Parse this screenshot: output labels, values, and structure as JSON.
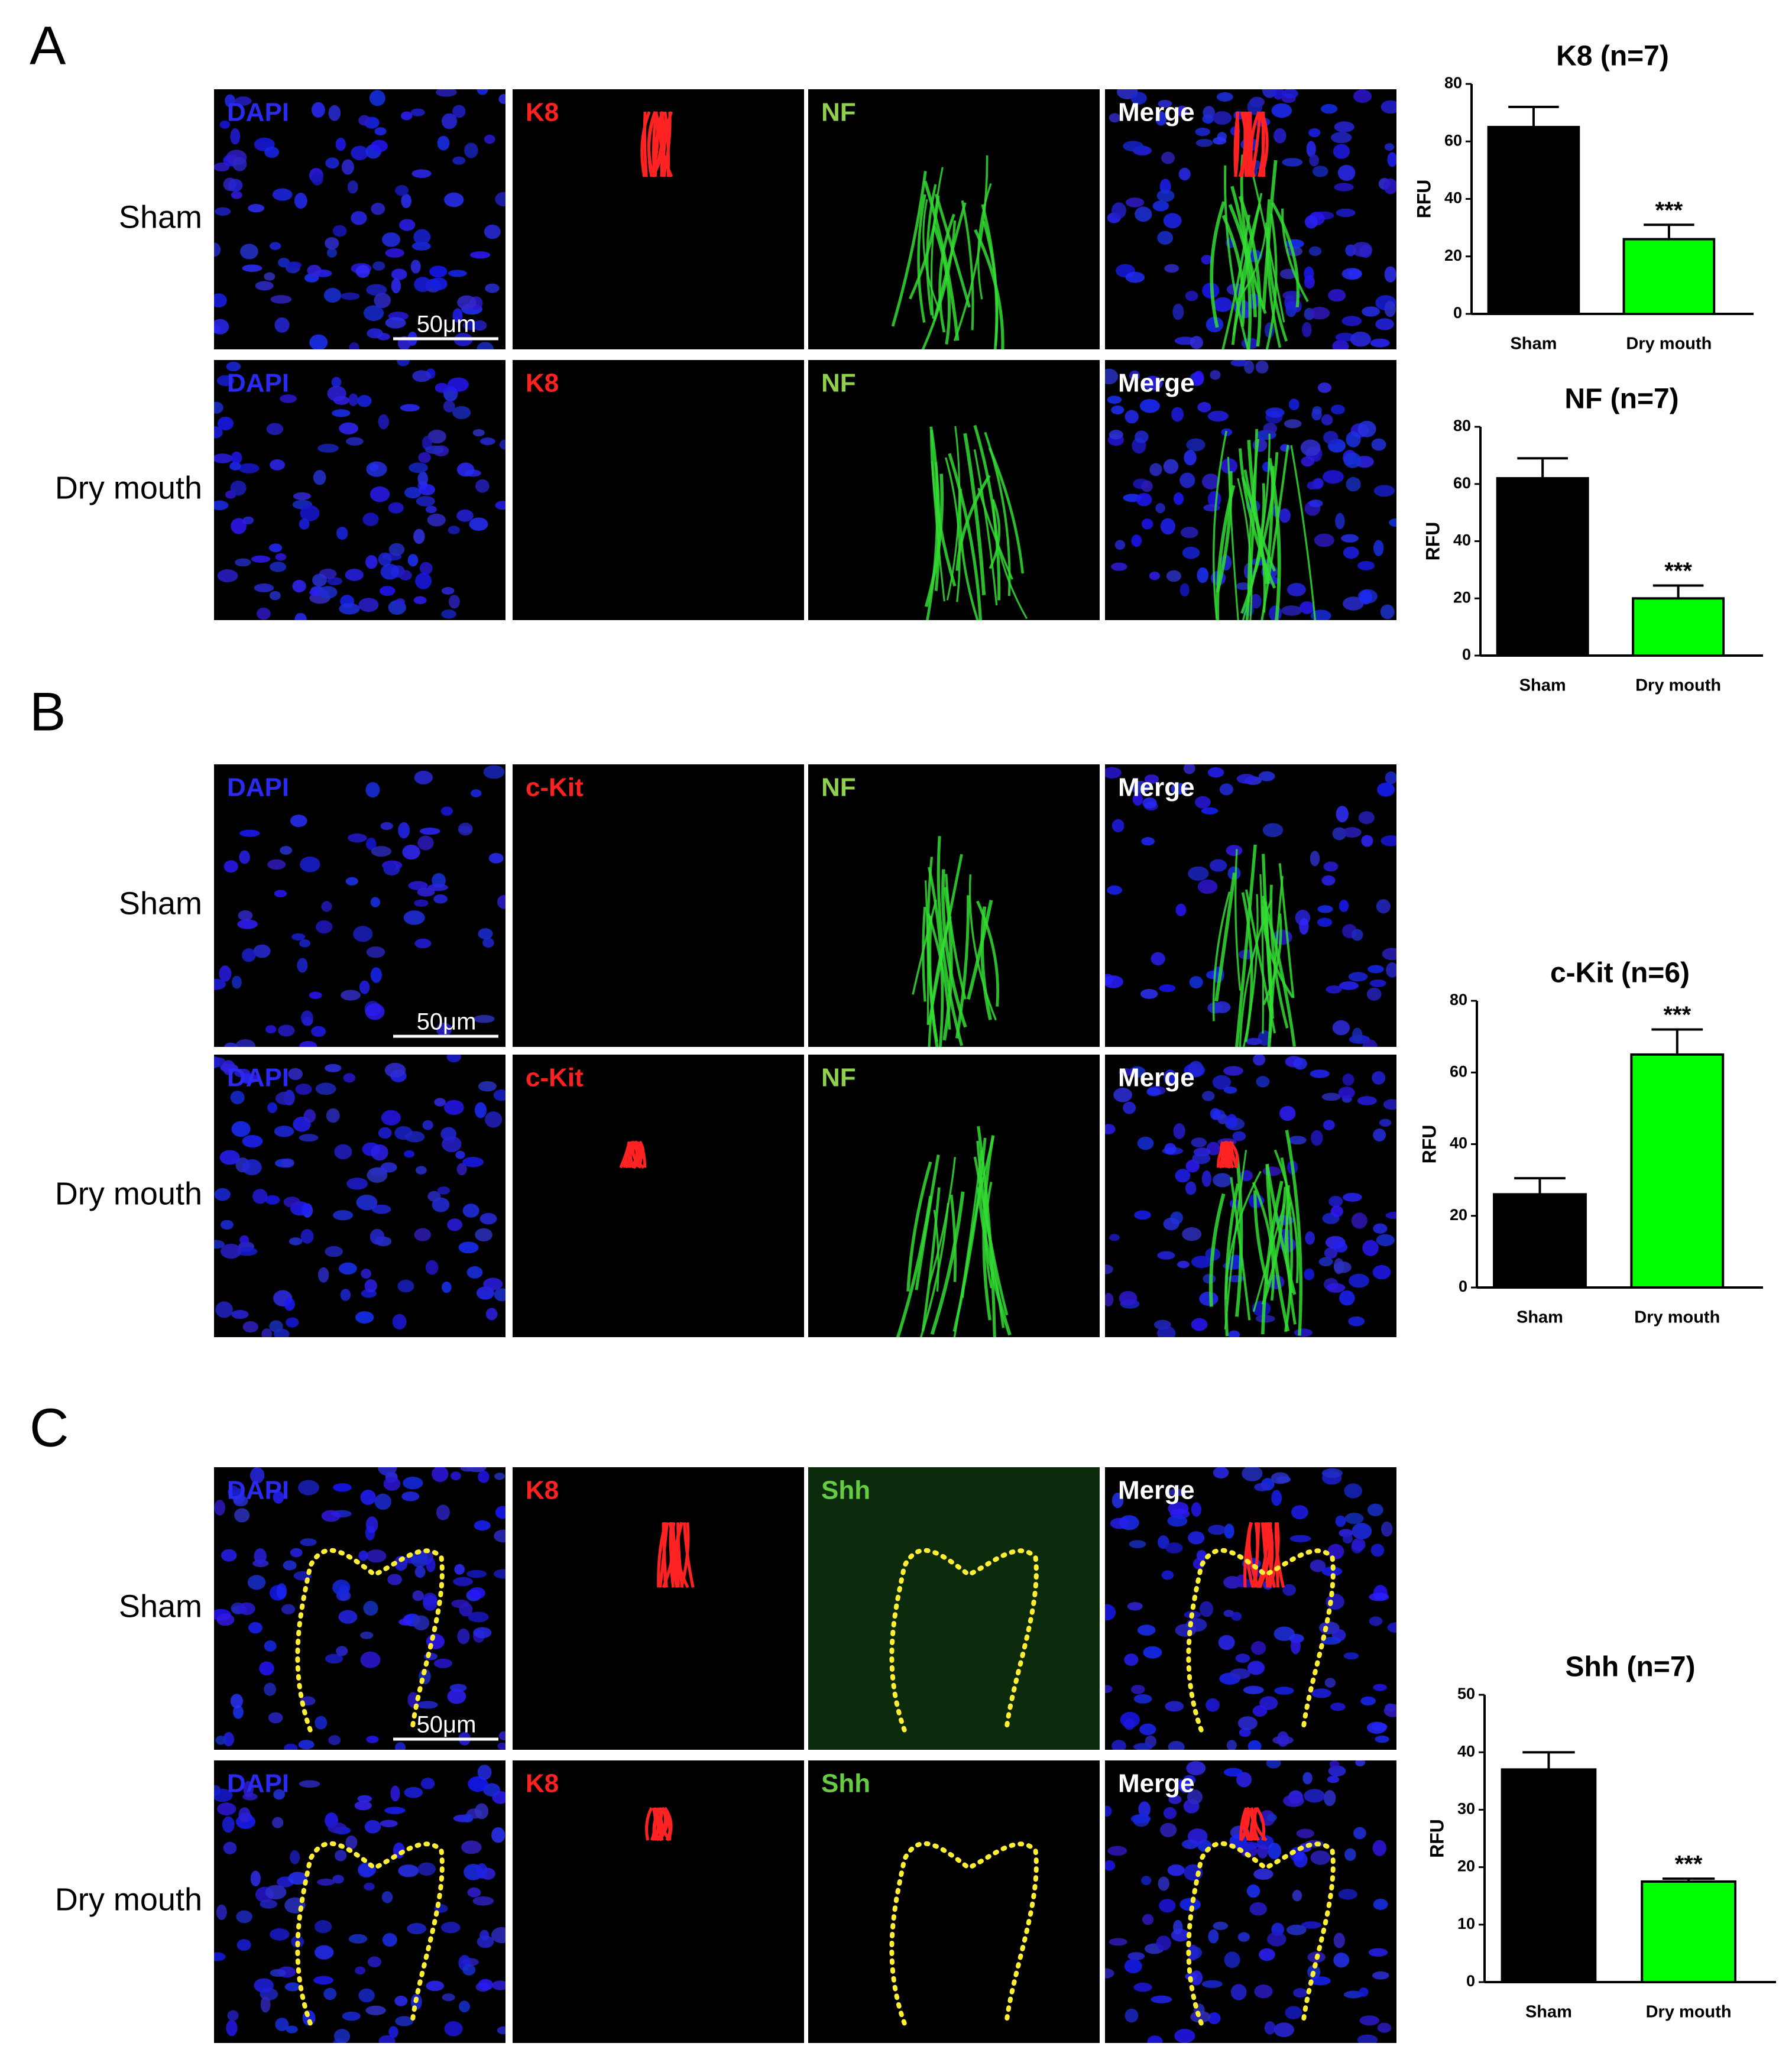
{
  "panels": [
    {
      "label": "A",
      "rows": [
        "Sham",
        "Dry mouth"
      ],
      "channels": [
        "DAPI",
        "K8",
        "NF",
        "Merge"
      ],
      "channel_colors": [
        "#2a2af0",
        "#ff2020",
        "#8fd14f",
        "#ffffff"
      ],
      "scale_bar": "50μm"
    },
    {
      "label": "B",
      "rows": [
        "Sham",
        "Dry mouth"
      ],
      "channels": [
        "DAPI",
        "c-Kit",
        "NF",
        "Merge"
      ],
      "channel_colors": [
        "#2a2af0",
        "#ff2020",
        "#8fd14f",
        "#ffffff"
      ],
      "scale_bar": "50μm"
    },
    {
      "label": "C",
      "rows": [
        "Sham",
        "Dry mouth"
      ],
      "channels": [
        "DAPI",
        "K8",
        "Shh",
        "Merge"
      ],
      "channel_colors": [
        "#2a2af0",
        "#ff2020",
        "#66cc44",
        "#ffffff"
      ],
      "scale_bar": "50μm"
    }
  ],
  "chart_data": [
    {
      "type": "bar",
      "title": "K8 (n=7)",
      "ylabel": "RFU",
      "categories": [
        "Sham",
        "Dry mouth"
      ],
      "values": [
        65,
        26
      ],
      "errors": [
        7,
        5
      ],
      "colors": [
        "#000000",
        "#00ff00"
      ],
      "ylim": [
        0,
        80
      ],
      "yticks": [
        0,
        20,
        40,
        60,
        80
      ],
      "annotations": [
        {
          "category": "Dry mouth",
          "text": "***"
        }
      ]
    },
    {
      "type": "bar",
      "title": "NF (n=7)",
      "ylabel": "RFU",
      "categories": [
        "Sham",
        "Dry mouth"
      ],
      "values": [
        62,
        20
      ],
      "errors": [
        7,
        4.5
      ],
      "colors": [
        "#000000",
        "#00ff00"
      ],
      "ylim": [
        0,
        80
      ],
      "yticks": [
        0,
        20,
        40,
        60,
        80
      ],
      "annotations": [
        {
          "category": "Dry mouth",
          "text": "***"
        }
      ]
    },
    {
      "type": "bar",
      "title": "c-Kit (n=6)",
      "ylabel": "RFU",
      "categories": [
        "Sham",
        "Dry mouth"
      ],
      "values": [
        26,
        65
      ],
      "errors": [
        4.5,
        7
      ],
      "colors": [
        "#000000",
        "#00ff00"
      ],
      "ylim": [
        0,
        80
      ],
      "yticks": [
        0,
        20,
        40,
        60,
        80
      ],
      "annotations": [
        {
          "category": "Dry mouth",
          "text": "***"
        }
      ]
    },
    {
      "type": "bar",
      "title": "Shh (n=7)",
      "ylabel": "RFU",
      "categories": [
        "Sham",
        "Dry mouth"
      ],
      "values": [
        37,
        17.5
      ],
      "errors": [
        3,
        0.5
      ],
      "colors": [
        "#000000",
        "#00ff00"
      ],
      "ylim": [
        0,
        50
      ],
      "yticks": [
        0,
        10,
        20,
        30,
        40,
        50
      ],
      "annotations": [
        {
          "category": "Dry mouth",
          "text": "***"
        }
      ]
    }
  ]
}
